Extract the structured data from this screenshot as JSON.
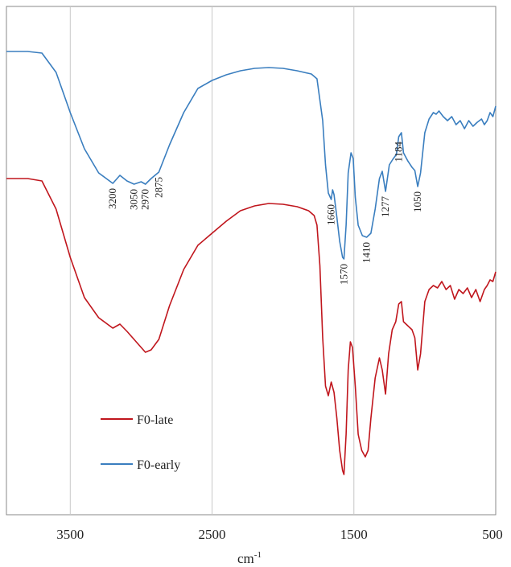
{
  "chart_data": {
    "type": "line",
    "title": "",
    "xlabel": "cm",
    "xlabel_superscript": "-1",
    "ylabel": "",
    "xlim": [
      3950,
      500
    ],
    "x_reversed": true,
    "x_ticks": [
      3500,
      2500,
      1500,
      500
    ],
    "x_tick_labels": [
      "3500",
      "2500",
      "1500",
      "500"
    ],
    "grid": "vertical",
    "legend_position": "bottom-left",
    "colors": {
      "early": "#3a7ebf",
      "late": "#c0161d",
      "grid": "#c8c8c8",
      "frame": "#888888"
    },
    "series": [
      {
        "name": "F0-early",
        "key": "early",
        "points": [
          [
            3950,
            64
          ],
          [
            3800,
            64
          ],
          [
            3700,
            66
          ],
          [
            3600,
            90
          ],
          [
            3500,
            140
          ],
          [
            3400,
            185
          ],
          [
            3300,
            215
          ],
          [
            3200,
            228
          ],
          [
            3150,
            218
          ],
          [
            3100,
            225
          ],
          [
            3050,
            229
          ],
          [
            3000,
            226
          ],
          [
            2970,
            229
          ],
          [
            2930,
            222
          ],
          [
            2875,
            214
          ],
          [
            2800,
            180
          ],
          [
            2700,
            140
          ],
          [
            2600,
            110
          ],
          [
            2500,
            100
          ],
          [
            2400,
            93
          ],
          [
            2300,
            88
          ],
          [
            2200,
            85
          ],
          [
            2100,
            84
          ],
          [
            2000,
            85
          ],
          [
            1900,
            88
          ],
          [
            1800,
            92
          ],
          [
            1760,
            98
          ],
          [
            1720,
            150
          ],
          [
            1700,
            205
          ],
          [
            1680,
            240
          ],
          [
            1660,
            248
          ],
          [
            1650,
            236
          ],
          [
            1640,
            242
          ],
          [
            1620,
            270
          ],
          [
            1600,
            300
          ],
          [
            1580,
            320
          ],
          [
            1570,
            322
          ],
          [
            1555,
            280
          ],
          [
            1540,
            215
          ],
          [
            1520,
            190
          ],
          [
            1505,
            197
          ],
          [
            1490,
            245
          ],
          [
            1470,
            280
          ],
          [
            1440,
            293
          ],
          [
            1410,
            295
          ],
          [
            1380,
            290
          ],
          [
            1350,
            260
          ],
          [
            1320,
            222
          ],
          [
            1300,
            213
          ],
          [
            1277,
            238
          ],
          [
            1250,
            205
          ],
          [
            1225,
            198
          ],
          [
            1200,
            192
          ],
          [
            1184,
            170
          ],
          [
            1165,
            165
          ],
          [
            1150,
            190
          ],
          [
            1120,
            200
          ],
          [
            1090,
            208
          ],
          [
            1070,
            212
          ],
          [
            1050,
            232
          ],
          [
            1030,
            215
          ],
          [
            1000,
            165
          ],
          [
            970,
            148
          ],
          [
            940,
            140
          ],
          [
            920,
            142
          ],
          [
            900,
            138
          ],
          [
            870,
            145
          ],
          [
            840,
            150
          ],
          [
            810,
            145
          ],
          [
            780,
            155
          ],
          [
            750,
            150
          ],
          [
            720,
            160
          ],
          [
            690,
            150
          ],
          [
            660,
            157
          ],
          [
            630,
            152
          ],
          [
            600,
            148
          ],
          [
            580,
            155
          ],
          [
            560,
            150
          ],
          [
            540,
            140
          ],
          [
            520,
            145
          ],
          [
            500,
            132
          ]
        ]
      },
      {
        "name": "F0-late",
        "key": "late",
        "points": [
          [
            3950,
            222
          ],
          [
            3800,
            222
          ],
          [
            3700,
            225
          ],
          [
            3600,
            260
          ],
          [
            3500,
            320
          ],
          [
            3400,
            370
          ],
          [
            3300,
            395
          ],
          [
            3200,
            408
          ],
          [
            3150,
            403
          ],
          [
            3100,
            412
          ],
          [
            3050,
            422
          ],
          [
            3000,
            432
          ],
          [
            2970,
            438
          ],
          [
            2930,
            435
          ],
          [
            2875,
            422
          ],
          [
            2800,
            380
          ],
          [
            2700,
            335
          ],
          [
            2600,
            305
          ],
          [
            2500,
            290
          ],
          [
            2400,
            275
          ],
          [
            2300,
            262
          ],
          [
            2200,
            256
          ],
          [
            2100,
            253
          ],
          [
            2000,
            254
          ],
          [
            1900,
            257
          ],
          [
            1820,
            262
          ],
          [
            1780,
            268
          ],
          [
            1760,
            280
          ],
          [
            1740,
            330
          ],
          [
            1720,
            420
          ],
          [
            1700,
            480
          ],
          [
            1680,
            492
          ],
          [
            1660,
            475
          ],
          [
            1640,
            488
          ],
          [
            1620,
            520
          ],
          [
            1600,
            560
          ],
          [
            1580,
            585
          ],
          [
            1570,
            590
          ],
          [
            1555,
            540
          ],
          [
            1540,
            460
          ],
          [
            1525,
            425
          ],
          [
            1510,
            432
          ],
          [
            1490,
            480
          ],
          [
            1470,
            540
          ],
          [
            1445,
            560
          ],
          [
            1420,
            568
          ],
          [
            1400,
            560
          ],
          [
            1380,
            520
          ],
          [
            1350,
            470
          ],
          [
            1320,
            445
          ],
          [
            1300,
            460
          ],
          [
            1277,
            490
          ],
          [
            1255,
            440
          ],
          [
            1230,
            410
          ],
          [
            1205,
            400
          ],
          [
            1184,
            378
          ],
          [
            1165,
            375
          ],
          [
            1150,
            400
          ],
          [
            1120,
            405
          ],
          [
            1090,
            410
          ],
          [
            1070,
            420
          ],
          [
            1050,
            460
          ],
          [
            1030,
            440
          ],
          [
            1000,
            375
          ],
          [
            970,
            360
          ],
          [
            940,
            355
          ],
          [
            910,
            358
          ],
          [
            880,
            350
          ],
          [
            850,
            360
          ],
          [
            820,
            355
          ],
          [
            790,
            372
          ],
          [
            760,
            360
          ],
          [
            730,
            365
          ],
          [
            700,
            358
          ],
          [
            670,
            370
          ],
          [
            640,
            360
          ],
          [
            610,
            375
          ],
          [
            580,
            360
          ],
          [
            560,
            355
          ],
          [
            540,
            348
          ],
          [
            520,
            350
          ],
          [
            500,
            338
          ]
        ]
      }
    ],
    "peak_labels": [
      {
        "text": "3200",
        "x": 3200,
        "series": "early"
      },
      {
        "text": "3050",
        "x": 3050,
        "series": "early"
      },
      {
        "text": "2970",
        "x": 2970,
        "series": "early"
      },
      {
        "text": "2875",
        "x": 2875,
        "series": "early"
      },
      {
        "text": "1660",
        "x": 1660,
        "series": "early"
      },
      {
        "text": "1570",
        "x": 1570,
        "series": "early"
      },
      {
        "text": "1410",
        "x": 1410,
        "series": "early"
      },
      {
        "text": "1277",
        "x": 1277,
        "series": "early"
      },
      {
        "text": "1184",
        "x": 1184,
        "series": "early"
      },
      {
        "text": "1050",
        "x": 1050,
        "series": "early"
      }
    ],
    "legend": [
      {
        "label": "F0-late",
        "key": "late"
      },
      {
        "label": "F0-early",
        "key": "early"
      }
    ]
  }
}
